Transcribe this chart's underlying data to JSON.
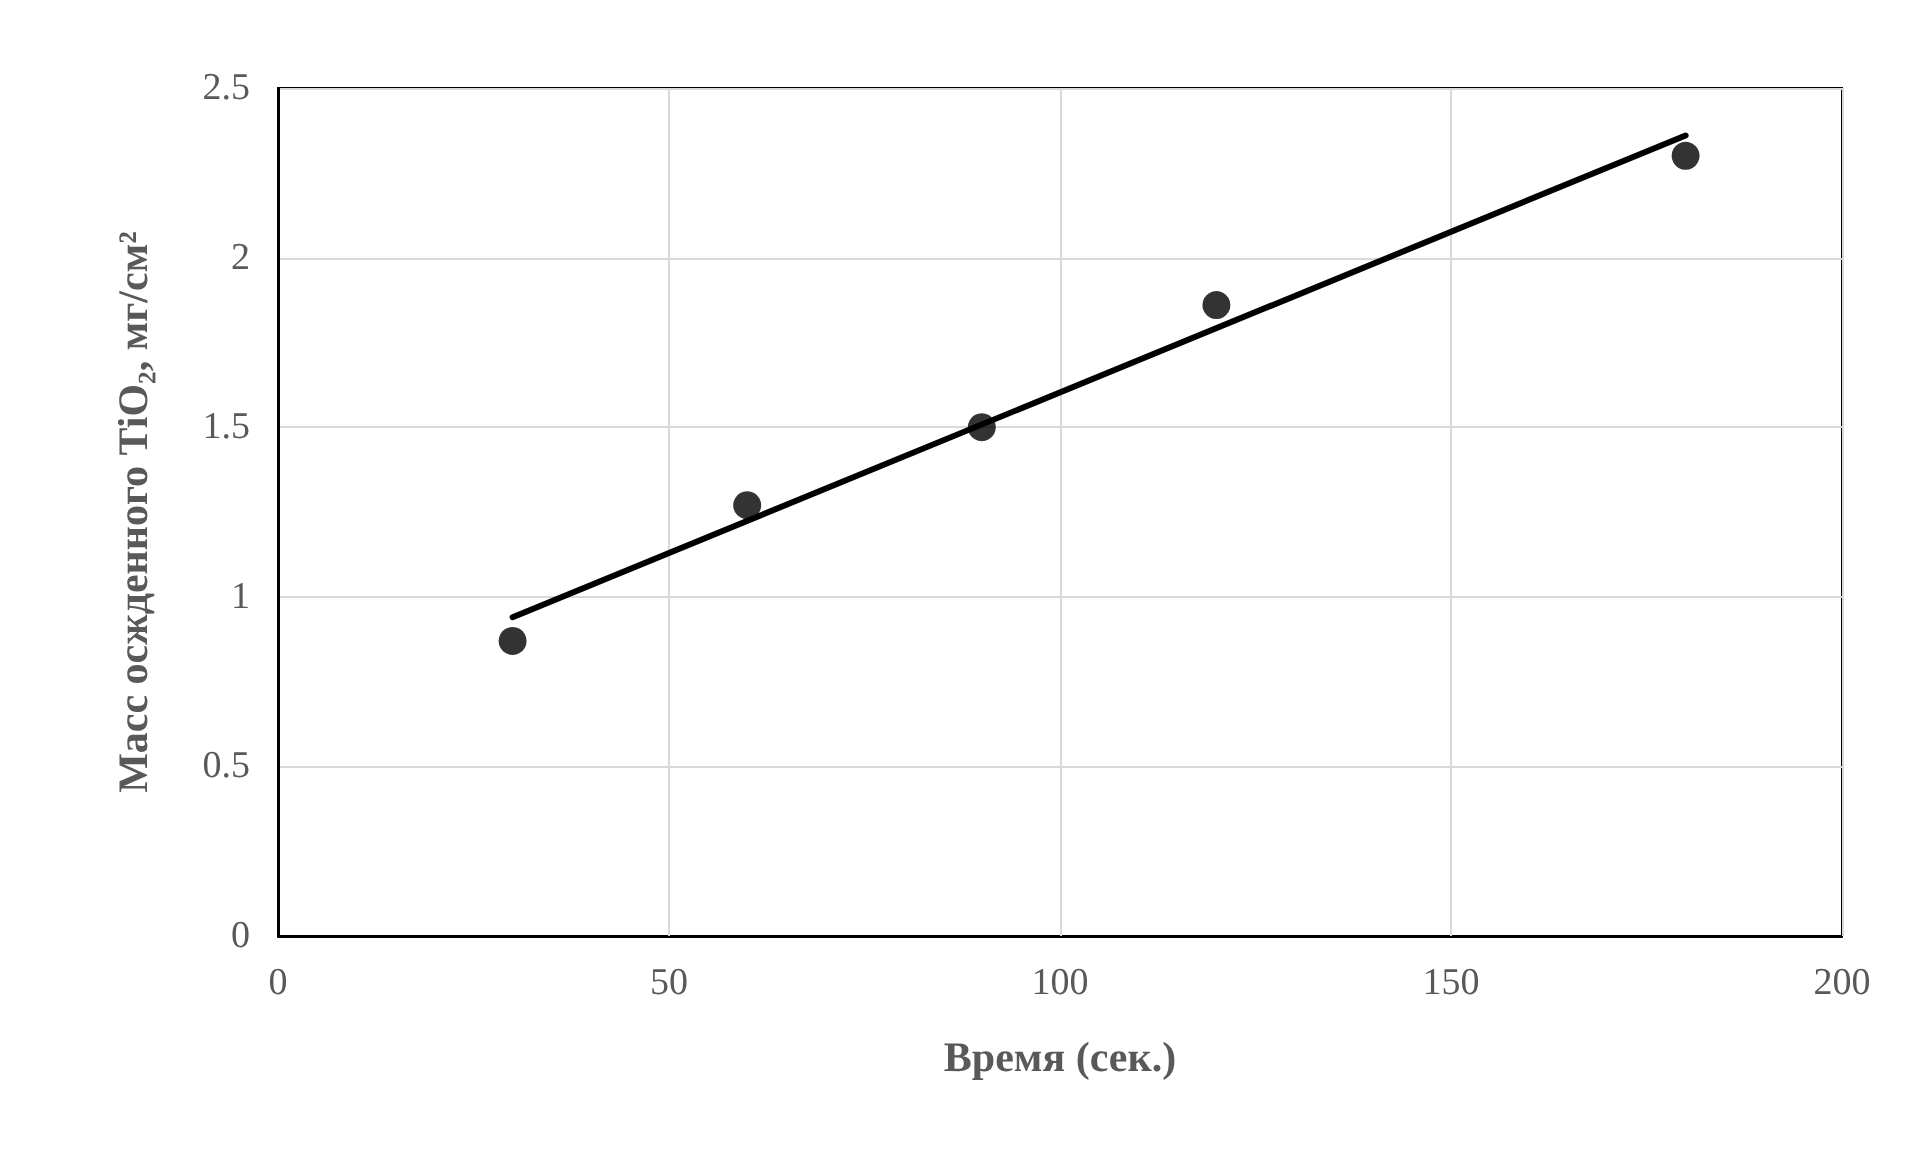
{
  "chart_data": {
    "type": "scatter",
    "xlabel": "Время (сек.)",
    "ylabel": "Масс осжденного TiO₂, мг/см²",
    "x": [
      30,
      60,
      90,
      120,
      180
    ],
    "series": [
      {
        "color": "#000000",
        "marker": "circle",
        "values": [
          0.87,
          1.27,
          1.5,
          1.86,
          2.3
        ]
      },
      {
        "type": "line",
        "color": "#000000",
        "marker": "none",
        "line_style": "solid",
        "x": [
          30,
          180
        ],
        "values": [
          0.94,
          2.36
        ]
      }
    ],
    "xlim": [
      0,
      200
    ],
    "xticks": [
      0,
      50,
      100,
      150,
      200
    ],
    "ylim": [
      0,
      2.5
    ],
    "yticks": [
      0,
      0.5,
      1,
      1.5,
      2,
      2.5
    ],
    "grid": true
  }
}
